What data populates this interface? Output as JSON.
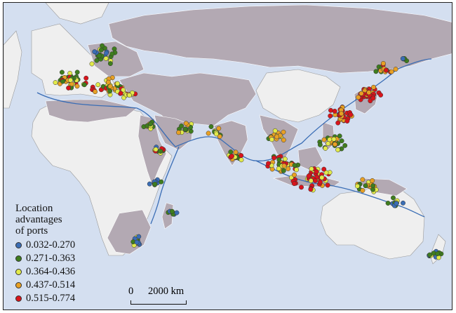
{
  "legend": {
    "title_line1": "Location",
    "title_line2": "advantages",
    "title_line3": "of ports",
    "items": [
      {
        "label": "0.032-0.270",
        "color": "#3a6db5"
      },
      {
        "label": "0.271-0.363",
        "color": "#3f7d1e"
      },
      {
        "label": "0.364-0.436",
        "color": "#e2ea4a"
      },
      {
        "label": "0.437-0.514",
        "color": "#e8a024"
      },
      {
        "label": "0.515-0.774",
        "color": "#d9141b"
      }
    ]
  },
  "scale_bar": {
    "zero_label": "0",
    "distance_label": "2000 km"
  },
  "colors": {
    "ocean": "#d4dff0",
    "study_land": "#b3a9b3",
    "other_land": "#efefef",
    "shipping_route": "#3a6db5"
  }
}
